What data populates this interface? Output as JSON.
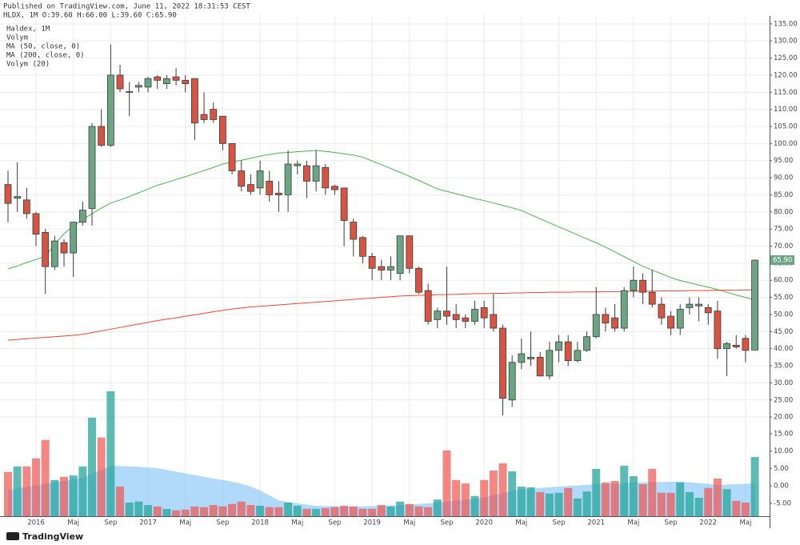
{
  "header": {
    "published": "Published on TradingView.com, June 11, 2022 18:31:53 CEST",
    "symbol": "HLDX, 1M O:39.60 H:66.00 L:39.60 C:65.90"
  },
  "footer": {
    "logo": "TradingView"
  },
  "chart_data": {
    "type": "candlestick",
    "title": "Haldex, 1M",
    "categories": [
      null,
      null,
      null,
      "2016",
      null,
      null,
      null,
      "Maj",
      null,
      null,
      null,
      "Sep",
      null,
      null,
      null,
      "2017",
      null,
      null,
      null,
      "Maj",
      null,
      null,
      null,
      "Sep",
      null,
      null,
      null,
      "2018",
      null,
      null,
      null,
      "Maj",
      null,
      null,
      null,
      "Sep",
      null,
      null,
      null,
      "2019",
      null,
      null,
      null,
      "Maj",
      null,
      null,
      null,
      "Sep",
      null,
      null,
      null,
      "2020",
      null,
      null,
      null,
      "Maj",
      null,
      null,
      null,
      "Sep",
      null,
      null,
      null,
      "2021",
      null,
      null,
      null,
      "Maj",
      null,
      null,
      null,
      "Sep",
      null,
      null,
      null,
      "2022",
      null,
      null,
      null,
      "Maj",
      null
    ],
    "open": [
      88,
      84,
      83.5,
      79.5,
      74,
      64,
      71,
      68,
      77,
      81,
      105,
      99.5,
      120,
      115,
      116.5,
      116.5,
      119.5,
      117.5,
      119.5,
      118.5,
      119,
      108.5,
      110,
      108,
      100,
      92,
      88,
      87,
      89,
      85.5,
      85,
      93.5,
      93.5,
      89,
      93,
      87.5,
      87,
      77,
      72.5,
      67,
      64,
      63,
      62,
      73,
      63.5,
      57,
      48.5,
      51,
      50,
      49,
      48,
      52,
      50,
      46,
      25,
      36,
      37,
      37.5,
      32,
      39.5,
      42,
      36.5,
      39.5,
      43.5,
      50,
      49,
      46,
      57,
      60,
      56.5,
      53,
      49.5,
      46,
      52,
      52.5,
      52,
      51,
      40,
      41,
      43,
      39.6
    ],
    "high": [
      92,
      94.5,
      87,
      80,
      75,
      73,
      72,
      77,
      83,
      106,
      110,
      129,
      123,
      118,
      118,
      119.5,
      120,
      120,
      122,
      120,
      119,
      115,
      112,
      108,
      100,
      95,
      91,
      95,
      92,
      89,
      98,
      95,
      95,
      98,
      94,
      88,
      87,
      78,
      73,
      68,
      66,
      67,
      73,
      73,
      64,
      59,
      52,
      64,
      53,
      50,
      54,
      54,
      56,
      47,
      38,
      43,
      45,
      39,
      42,
      44,
      44,
      42,
      45,
      58,
      52,
      53,
      58,
      64,
      62,
      63,
      55,
      51,
      53,
      55,
      55,
      53,
      54,
      42,
      44,
      44,
      66
    ],
    "low": [
      77,
      80,
      78,
      70,
      56,
      63,
      64,
      61,
      76,
      76,
      99,
      99,
      115,
      108,
      115,
      115,
      116,
      116,
      117,
      115,
      101,
      106,
      106,
      98,
      91,
      86,
      85,
      85,
      83,
      80,
      80,
      91,
      84,
      86,
      85,
      85,
      70,
      67,
      65,
      60,
      60,
      60,
      60,
      62,
      56,
      47,
      46,
      47,
      46,
      46,
      47,
      46,
      45,
      20.5,
      23,
      34,
      35,
      32,
      31,
      36,
      35,
      36,
      39,
      43,
      45,
      45,
      45,
      55,
      53,
      52,
      47,
      44,
      44,
      50,
      48,
      47,
      37,
      32,
      40,
      36,
      39.6
    ],
    "close": [
      82.5,
      84.5,
      79.5,
      73.5,
      64,
      71.5,
      68,
      77,
      80.5,
      105,
      99.5,
      120,
      116,
      115.2,
      117,
      119,
      118.5,
      119,
      118.5,
      117.5,
      106,
      107,
      107,
      100,
      92,
      87.5,
      86,
      92,
      85,
      85,
      94,
      94,
      89,
      93.5,
      87,
      86.5,
      77.5,
      72,
      67,
      63.5,
      63,
      64,
      73,
      63.5,
      56.5,
      48,
      51,
      49.5,
      48.5,
      48,
      51.5,
      49,
      46,
      25.5,
      36,
      38.5,
      37.5,
      32,
      39.5,
      42,
      36.5,
      39.5,
      43.5,
      50,
      47.5,
      46,
      57,
      60,
      56.5,
      53,
      49,
      46,
      51.5,
      53,
      53,
      50.5,
      40,
      41.5,
      40.5,
      39.5,
      65.9
    ],
    "up_color": "#6ba583",
    "down_color": "#d75442",
    "wick_color": "#3a3a3a",
    "last_price_label": "65.90",
    "lines": [
      {
        "name": "MA (50, close, 0)",
        "color": "#4caf50",
        "values": [
          63.3,
          64.2,
          65.2,
          66.1,
          67,
          70.5,
          73.6,
          75.9,
          77.8,
          79.5,
          81.1,
          82.6,
          83.5,
          84.5,
          85.6,
          86.7,
          87.8,
          88.6,
          89.5,
          90.3,
          91.2,
          92.1,
          93,
          94,
          94.6,
          95.1,
          95.7,
          96.3,
          96.8,
          97.2,
          97.4,
          97.6,
          97.8,
          98,
          97.7,
          97.4,
          97,
          96.6,
          96,
          94.9,
          93.8,
          92.7,
          91.6,
          90.4,
          89.2,
          88,
          86.7,
          86,
          85.3,
          84.6,
          83.9,
          83.3,
          82.6,
          81.9,
          81.2,
          80.4,
          79.2,
          78,
          76.8,
          75.6,
          74.5,
          73.3,
          72.1,
          71,
          69.7,
          68.3,
          66.9,
          65.5,
          64.1,
          63,
          61.9,
          60.8,
          59.9,
          59.3,
          58.6,
          58,
          57.3,
          56.5,
          55.7,
          55,
          54.2
        ]
      },
      {
        "name": "MA (200, close, 0)",
        "color": "#f44336",
        "values": [
          42.5,
          42.7,
          42.9,
          43.1,
          43.3,
          43.5,
          43.7,
          43.9,
          44.2,
          44.7,
          45.2,
          45.7,
          46.2,
          46.7,
          47.2,
          47.7,
          48.2,
          48.6,
          49,
          49.5,
          49.9,
          50.3,
          50.8,
          51.2,
          51.6,
          51.9,
          52.2,
          52.4,
          52.6,
          52.8,
          53,
          53.2,
          53.4,
          53.6,
          53.8,
          54,
          54.2,
          54.4,
          54.6,
          54.8,
          55,
          55.2,
          55.4,
          55.5,
          55.6,
          55.7,
          55.8,
          55.8,
          55.9,
          56,
          56.1,
          56.1,
          56.2,
          56.2,
          56.3,
          56.3,
          56.4,
          56.4,
          56.5,
          56.5,
          56.5,
          56.6,
          56.6,
          56.6,
          56.7,
          56.7,
          56.7,
          56.8,
          56.8,
          56.8,
          56.9,
          56.9,
          56.9,
          57,
          57,
          57,
          57.1,
          57.1,
          57.1,
          57.2,
          57.2
        ]
      }
    ],
    "volume": {
      "name": "Volym",
      "axis": "y2",
      "up_color": "rgba(38,166,154,0.75)",
      "down_color": "rgba(239,83,80,0.7)",
      "values": [
        4,
        5.6,
        5.6,
        7.9,
        13.2,
        1.7,
        2.6,
        3,
        5.6,
        19.6,
        13.9,
        27.2,
        -0.2,
        -4.8,
        -4.5,
        -5.5,
        -5.9,
        -6.6,
        -7,
        -6.8,
        -5.9,
        -6.1,
        -5.5,
        -5.9,
        -5.2,
        -4.5,
        -5.5,
        -5.7,
        -6.1,
        -6.1,
        -4.8,
        -5.7,
        -6.6,
        -6.6,
        -6.4,
        -6.1,
        -5.7,
        -5.9,
        -6.6,
        -6.6,
        -5.5,
        -5.9,
        -4.5,
        -5.2,
        -5.9,
        -6.1,
        -3.9,
        10.2,
        1.7,
        0.7,
        -2.9,
        1.7,
        4.4,
        6.5,
        4.2,
        -0.2,
        -0.4,
        -1.8,
        -2.2,
        -2,
        -0.6,
        -3.6,
        -1.6,
        4.9,
        1,
        1.4,
        5.8,
        2.8,
        0.5,
        4.9,
        -2,
        -2,
        1,
        -1.8,
        -3.4,
        -0.6,
        2.1,
        -0.9,
        -4.3,
        -4.8,
        8.3
      ]
    },
    "volume_ma": {
      "name": "Volym (20)",
      "axis": "y2",
      "color": "rgba(100,181,246,0.5)",
      "values": [
        -1.1,
        -0.7,
        -0.3,
        0.2,
        0.6,
        1,
        1.4,
        1.9,
        2.4,
        3.5,
        4.6,
        5.8,
        5.7,
        5.6,
        5.5,
        5.3,
        5.1,
        4.6,
        4.1,
        3.6,
        3.1,
        2.6,
        2.1,
        1.7,
        1.2,
        0.6,
        -0.2,
        -1.3,
        -2.7,
        -4.1,
        -4.6,
        -5,
        -5.4,
        -5.7,
        -5.8,
        -5.8,
        -5.9,
        -5.9,
        -5.9,
        -5.8,
        -5.7,
        -5.6,
        -5.5,
        -5.3,
        -5.2,
        -5,
        -4.8,
        -4.5,
        -4.2,
        -4,
        -3.7,
        -3.3,
        -2.7,
        -2.1,
        -1.4,
        -1,
        -0.8,
        -0.6,
        -0.4,
        -0.2,
        0,
        0.1,
        0.3,
        0.5,
        0.6,
        0.7,
        0.8,
        1,
        1,
        1.1,
        1.1,
        1.2,
        1.2,
        1,
        0.8,
        0.6,
        0.3,
        0.4,
        0.5,
        0.6,
        0.7
      ]
    },
    "ylim": [
      -9,
      137.3
    ],
    "yticks": [
      {
        "value": 135,
        "label": "135.00"
      },
      {
        "value": 130,
        "label": "130.00"
      },
      {
        "value": 125,
        "label": "125.00"
      },
      {
        "value": 120,
        "label": "120.00"
      },
      {
        "value": 115,
        "label": "115.00"
      },
      {
        "value": 110,
        "label": "110.00"
      },
      {
        "value": 105,
        "label": "105.00"
      },
      {
        "value": 100,
        "label": "100.00"
      },
      {
        "value": 95,
        "label": "95.00"
      },
      {
        "value": 90,
        "label": "90.00"
      },
      {
        "value": 85,
        "label": "85.00"
      },
      {
        "value": 80,
        "label": "80.00"
      },
      {
        "value": 75,
        "label": "75.00"
      },
      {
        "value": 70,
        "label": "70.00"
      },
      {
        "value": 65,
        "label": "65.00"
      },
      {
        "value": 60,
        "label": "60.00"
      },
      {
        "value": 55,
        "label": "55.00"
      },
      {
        "value": 50,
        "label": "50.00"
      },
      {
        "value": 45,
        "label": "45.00"
      },
      {
        "value": 40,
        "label": "40.00"
      },
      {
        "value": 35,
        "label": "35.00"
      },
      {
        "value": 30,
        "label": "30.00"
      },
      {
        "value": 25,
        "label": "25.00"
      },
      {
        "value": 20,
        "label": "20.00"
      }
    ],
    "y2lim": [
      -8.7,
      135
    ],
    "y2ticks": [
      {
        "value": 15,
        "label": "15.00"
      },
      {
        "value": 10,
        "label": "10.00"
      },
      {
        "value": 5,
        "label": "5.00"
      },
      {
        "value": 0,
        "label": "0.00"
      },
      {
        "value": -5,
        "label": "-5.00"
      }
    ],
    "grid": true
  }
}
